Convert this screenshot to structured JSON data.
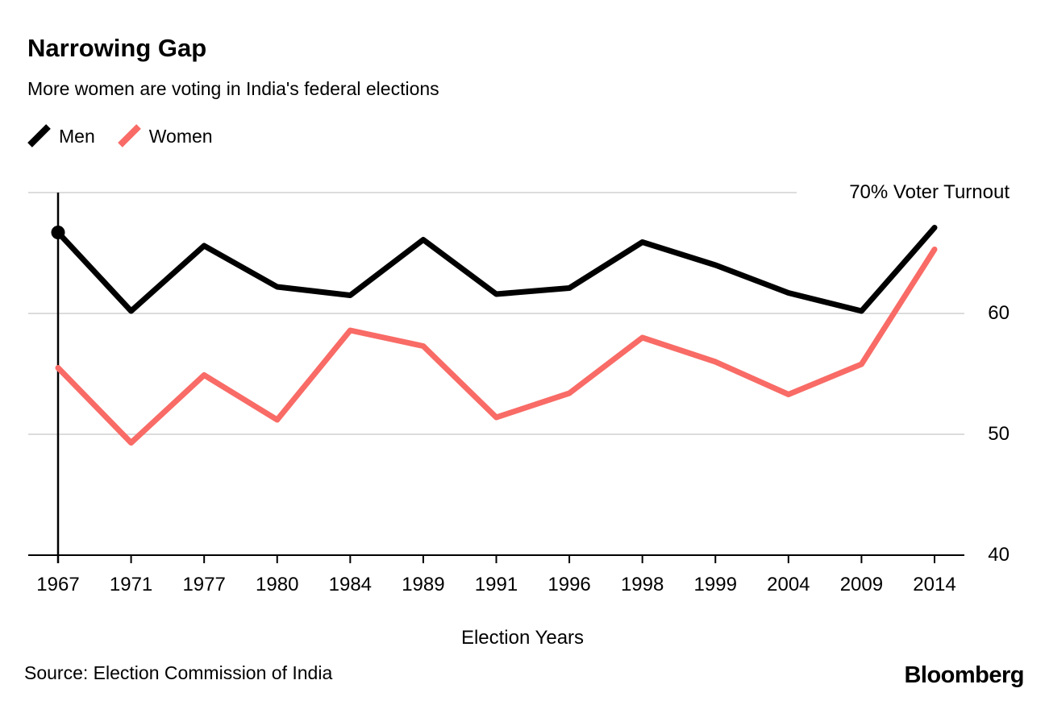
{
  "header": {
    "title": "Narrowing Gap",
    "subtitle": "More women are voting in India's federal elections"
  },
  "legend": [
    {
      "label": "Men",
      "color": "#000000"
    },
    {
      "label": "Women",
      "color": "#f96b66"
    }
  ],
  "chart_data": {
    "type": "line",
    "title": "Narrowing Gap",
    "subtitle": "More women are voting in India's federal elections",
    "categories": [
      "1967",
      "1971",
      "1977",
      "1980",
      "1984",
      "1989",
      "1991",
      "1996",
      "1998",
      "1999",
      "2004",
      "2009",
      "2014"
    ],
    "series": [
      {
        "name": "Men",
        "color": "#000000",
        "width": 7,
        "values": [
          66.7,
          60.2,
          65.6,
          62.2,
          61.5,
          66.1,
          61.6,
          62.1,
          65.9,
          64.0,
          61.7,
          60.2,
          67.1
        ]
      },
      {
        "name": "Women",
        "color": "#f96b66",
        "width": 7,
        "values": [
          55.5,
          49.3,
          54.9,
          51.2,
          58.6,
          57.3,
          51.4,
          53.4,
          58.0,
          56.0,
          53.3,
          55.8,
          65.3
        ]
      }
    ],
    "xlabel": "Election Years",
    "ylabel": "",
    "ylim": [
      40,
      70
    ],
    "y_ticks": [
      {
        "value": 70,
        "label": "70% Voter Turnout"
      },
      {
        "value": 60,
        "label": "60"
      },
      {
        "value": 50,
        "label": "50"
      },
      {
        "value": 40,
        "label": "40"
      }
    ],
    "grid": "horizontal",
    "legend_position": "top-left",
    "highlight": {
      "series": "Men",
      "category": "1967",
      "value": 66.7,
      "marker": "dot-with-vertical-line"
    },
    "colors": {
      "grid": "#dcdcdc",
      "axis": "#000000",
      "text": "#000000"
    }
  },
  "footer": {
    "source": "Source: Election Commission of India",
    "brand": "Bloomberg"
  }
}
